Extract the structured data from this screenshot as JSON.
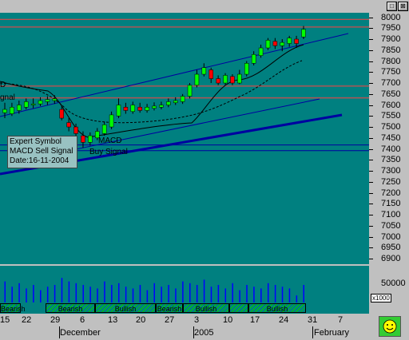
{
  "window": {
    "min_glyph": "□",
    "close_glyph": "⊠"
  },
  "price_axis": {
    "labels": [
      "8000",
      "7950",
      "7900",
      "7850",
      "7800",
      "7750",
      "7700",
      "7650",
      "7600",
      "7550",
      "7500",
      "7450",
      "7400",
      "7350",
      "7300",
      "7250",
      "7200",
      "7150",
      "7100",
      "7050",
      "7000",
      "6950",
      "6900"
    ]
  },
  "volume_axis": {
    "label": "50000",
    "multiplier": "x1000"
  },
  "date_axis": {
    "day_ticks": [
      "15",
      "22",
      "29",
      "6",
      "13",
      "20",
      "27",
      "3",
      "10",
      "17",
      "24",
      "31",
      "7"
    ],
    "months": [
      "December",
      "2005",
      "February"
    ]
  },
  "patterns": [
    "Bearish",
    "Bearish",
    "Bullish",
    "Bearish",
    "Bullish",
    "Bullish"
  ],
  "tooltip": {
    "line1": "Expert Symbol",
    "line2": "MACD Sell Signal",
    "line3": "Date:16-11-2004"
  },
  "annotations": {
    "macd_top": "D",
    "signal_top": "gnal",
    "macd_mid": "MACD",
    "buy_signal": "Buy Signal"
  },
  "colors": {
    "background": "#008080",
    "up_candle": "#00ff00",
    "down_candle": "#ff0000",
    "resistance": "#ff4040",
    "trend": "#0000a0",
    "panel": "#c0c0c0"
  },
  "chart_data": {
    "type": "candlestick",
    "ylim": [
      6875,
      8020
    ],
    "support_resistance": [
      7990,
      7955,
      7686,
      7632,
      7418,
      7392
    ],
    "candles": [
      {
        "o": 7565,
        "c": 7580,
        "h": 7610,
        "l": 7540
      },
      {
        "o": 7560,
        "c": 7590,
        "h": 7610,
        "l": 7550
      },
      {
        "o": 7575,
        "c": 7600,
        "h": 7620,
        "l": 7560
      },
      {
        "o": 7590,
        "c": 7615,
        "h": 7630,
        "l": 7580
      },
      {
        "o": 7600,
        "c": 7605,
        "h": 7630,
        "l": 7585
      },
      {
        "o": 7605,
        "c": 7620,
        "h": 7635,
        "l": 7595
      },
      {
        "o": 7615,
        "c": 7625,
        "h": 7640,
        "l": 7600
      },
      {
        "o": 7620,
        "c": 7628,
        "h": 7645,
        "l": 7605
      },
      {
        "o": 7580,
        "c": 7540,
        "h": 7600,
        "l": 7530
      },
      {
        "o": 7520,
        "c": 7500,
        "h": 7540,
        "l": 7480
      },
      {
        "o": 7500,
        "c": 7470,
        "h": 7515,
        "l": 7455
      },
      {
        "o": 7460,
        "c": 7430,
        "h": 7480,
        "l": 7405
      },
      {
        "o": 7430,
        "c": 7460,
        "h": 7475,
        "l": 7415
      },
      {
        "o": 7450,
        "c": 7480,
        "h": 7495,
        "l": 7440
      },
      {
        "o": 7470,
        "c": 7510,
        "h": 7525,
        "l": 7460
      },
      {
        "o": 7500,
        "c": 7555,
        "h": 7570,
        "l": 7490
      },
      {
        "o": 7550,
        "c": 7600,
        "h": 7630,
        "l": 7540
      },
      {
        "o": 7590,
        "c": 7575,
        "h": 7610,
        "l": 7560
      },
      {
        "o": 7570,
        "c": 7600,
        "h": 7615,
        "l": 7560
      },
      {
        "o": 7590,
        "c": 7575,
        "h": 7610,
        "l": 7565
      },
      {
        "o": 7575,
        "c": 7590,
        "h": 7605,
        "l": 7565
      },
      {
        "o": 7585,
        "c": 7595,
        "h": 7612,
        "l": 7575
      },
      {
        "o": 7590,
        "c": 7600,
        "h": 7615,
        "l": 7580
      },
      {
        "o": 7600,
        "c": 7615,
        "h": 7630,
        "l": 7590
      },
      {
        "o": 7610,
        "c": 7620,
        "h": 7635,
        "l": 7600
      },
      {
        "o": 7615,
        "c": 7640,
        "h": 7650,
        "l": 7605
      },
      {
        "o": 7640,
        "c": 7690,
        "h": 7700,
        "l": 7630
      },
      {
        "o": 7690,
        "c": 7740,
        "h": 7760,
        "l": 7680
      },
      {
        "o": 7740,
        "c": 7770,
        "h": 7790,
        "l": 7730
      },
      {
        "o": 7760,
        "c": 7720,
        "h": 7770,
        "l": 7700
      },
      {
        "o": 7720,
        "c": 7700,
        "h": 7735,
        "l": 7690
      },
      {
        "o": 7700,
        "c": 7735,
        "h": 7745,
        "l": 7690
      },
      {
        "o": 7730,
        "c": 7700,
        "h": 7740,
        "l": 7690
      },
      {
        "o": 7700,
        "c": 7740,
        "h": 7760,
        "l": 7695
      },
      {
        "o": 7740,
        "c": 7790,
        "h": 7800,
        "l": 7730
      },
      {
        "o": 7790,
        "c": 7830,
        "h": 7845,
        "l": 7780
      },
      {
        "o": 7825,
        "c": 7860,
        "h": 7875,
        "l": 7815
      },
      {
        "o": 7860,
        "c": 7895,
        "h": 7905,
        "l": 7850
      },
      {
        "o": 7890,
        "c": 7870,
        "h": 7905,
        "l": 7855
      },
      {
        "o": 7870,
        "c": 7885,
        "h": 7900,
        "l": 7845
      },
      {
        "o": 7880,
        "c": 7905,
        "h": 7915,
        "l": 7865
      },
      {
        "o": 7900,
        "c": 7880,
        "h": 7915,
        "l": 7860
      },
      {
        "o": 7910,
        "c": 7945,
        "h": 7960,
        "l": 7900
      }
    ],
    "volumes": [
      0.6,
      0.45,
      0.55,
      0.4,
      0.5,
      0.35,
      0.45,
      0.5,
      0.7,
      0.6,
      0.55,
      0.5,
      0.45,
      0.4,
      0.6,
      0.5,
      0.55,
      0.45,
      0.4,
      0.5,
      0.35,
      0.55,
      0.45,
      0.5,
      0.4,
      0.6,
      0.55,
      0.5,
      0.65,
      0.45,
      0.5,
      0.4,
      0.55,
      0.35,
      0.5,
      0.45,
      0.4,
      0.55,
      0.5,
      0.45,
      0.4,
      0.2,
      0.5
    ]
  }
}
